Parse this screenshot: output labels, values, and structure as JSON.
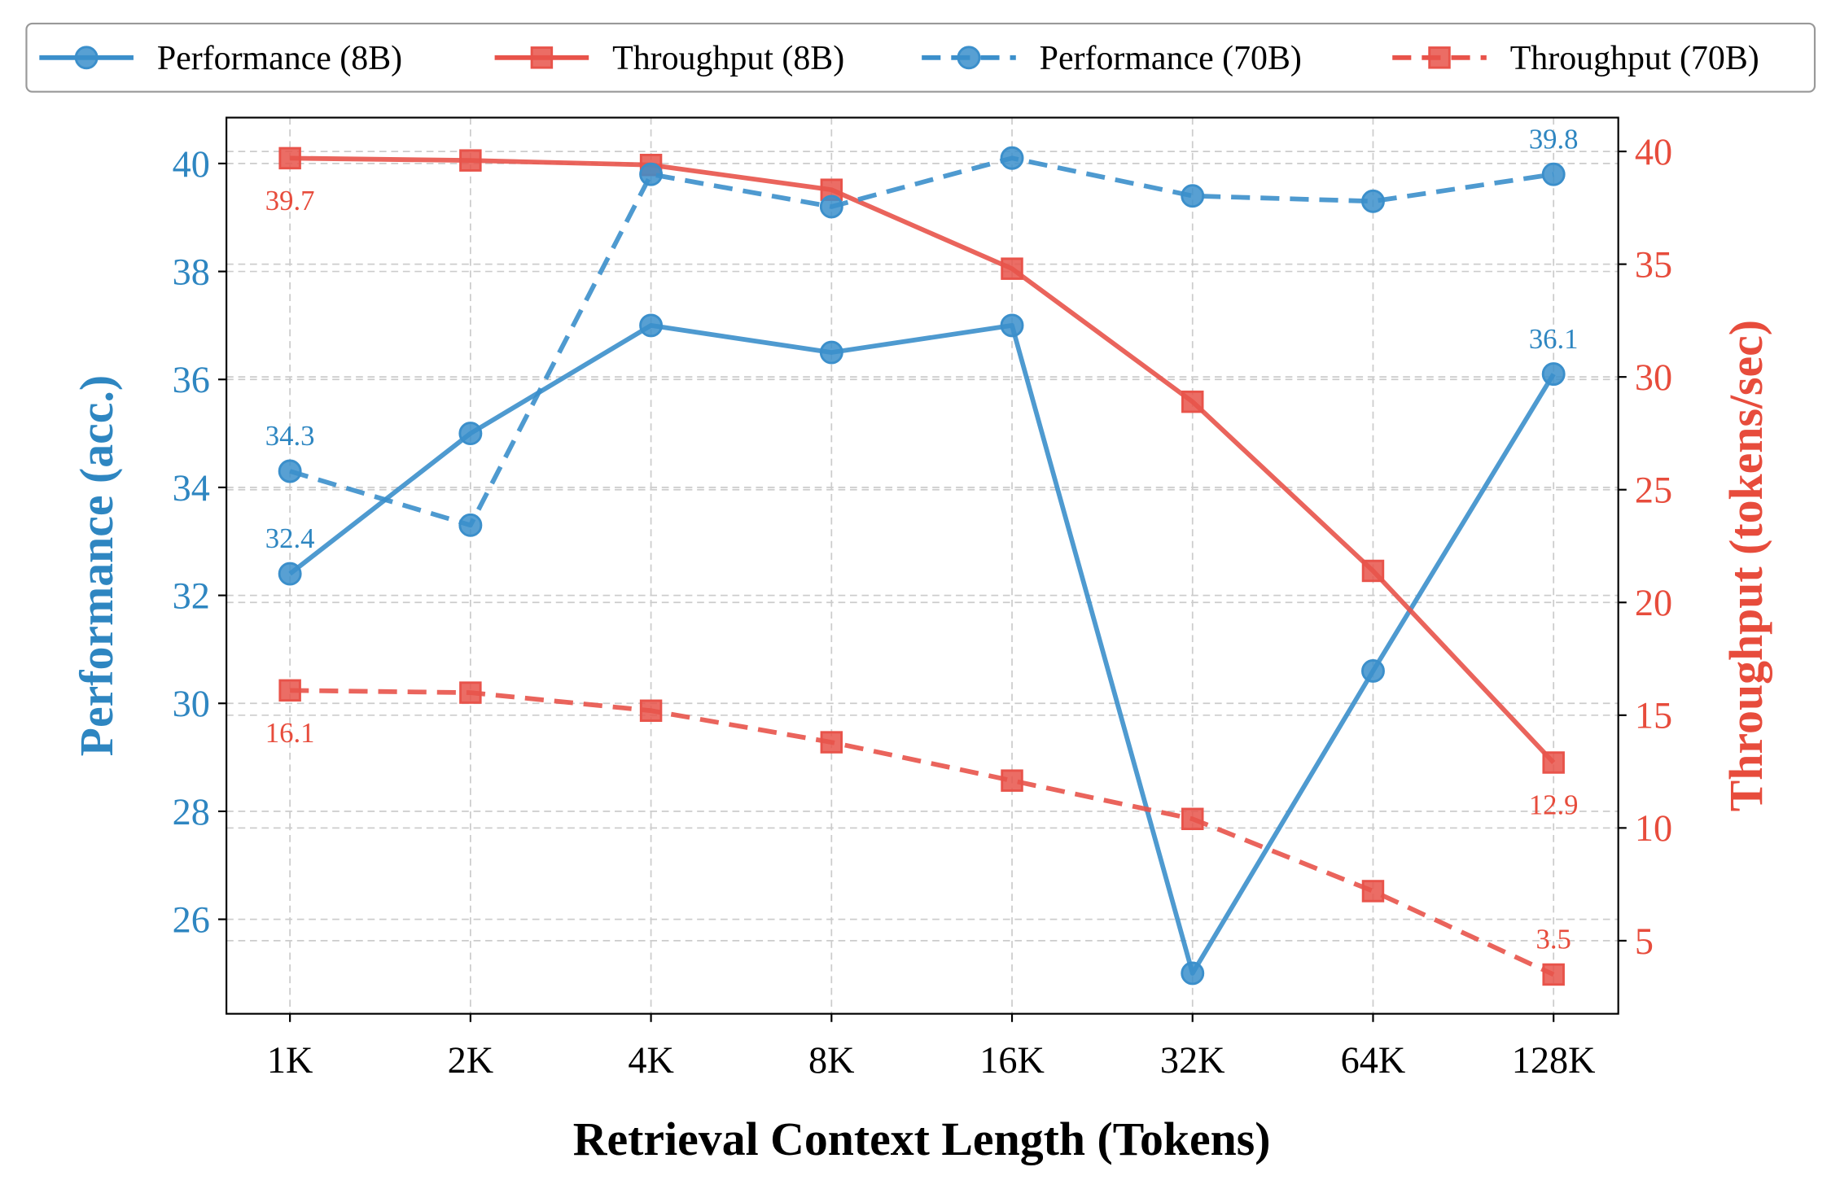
{
  "chart_data": {
    "type": "line",
    "xlabel": "Retrieval Context Length (Tokens)",
    "ylabel_left": "Performance (acc.)",
    "ylabel_right": "Throughput (tokens/sec)",
    "categories": [
      "1K",
      "2K",
      "4K",
      "8K",
      "16K",
      "32K",
      "64K",
      "128K"
    ],
    "ylim_left": [
      24.25,
      40.85
    ],
    "ylim_right": [
      1.76,
      41.5
    ],
    "yticks_left": [
      26,
      28,
      30,
      32,
      34,
      36,
      38,
      40
    ],
    "yticks_right": [
      5,
      10,
      15,
      20,
      25,
      30,
      35,
      40
    ],
    "grid": true,
    "legend_placement": "top (outside, above plot)",
    "colors": {
      "performance": "#3b8fcb",
      "throughput": "#e8534a",
      "left_axis": "#2e86c1",
      "right_axis": "#e74c3c"
    },
    "series": [
      {
        "name": "Performance (8B)",
        "axis": "left",
        "style": "solid",
        "marker": "circle",
        "values": [
          32.4,
          35.0,
          37.0,
          36.5,
          37.0,
          25.0,
          30.6,
          36.1
        ]
      },
      {
        "name": "Throughput (8B)",
        "axis": "right",
        "style": "solid",
        "marker": "square",
        "values": [
          39.7,
          39.6,
          39.4,
          38.3,
          34.8,
          28.9,
          21.4,
          12.9
        ]
      },
      {
        "name": "Performance (70B)",
        "axis": "left",
        "style": "dashed",
        "marker": "circle",
        "values": [
          34.3,
          33.3,
          39.8,
          39.2,
          40.1,
          39.4,
          39.3,
          39.8
        ]
      },
      {
        "name": "Throughput (70B)",
        "axis": "right",
        "style": "dashed",
        "marker": "square",
        "values": [
          16.1,
          16.0,
          15.2,
          13.8,
          12.1,
          10.4,
          7.2,
          3.5
        ]
      }
    ],
    "annotations": [
      {
        "text": "32.4",
        "series": 0,
        "index": 0,
        "pos": "above"
      },
      {
        "text": "36.1",
        "series": 0,
        "index": 7,
        "pos": "above"
      },
      {
        "text": "39.7",
        "series": 1,
        "index": 0,
        "pos": "below"
      },
      {
        "text": "12.9",
        "series": 1,
        "index": 7,
        "pos": "below"
      },
      {
        "text": "34.3",
        "series": 2,
        "index": 0,
        "pos": "above"
      },
      {
        "text": "39.8",
        "series": 2,
        "index": 7,
        "pos": "above"
      },
      {
        "text": "16.1",
        "series": 3,
        "index": 0,
        "pos": "below"
      },
      {
        "text": "3.5",
        "series": 3,
        "index": 7,
        "pos": "above"
      }
    ]
  }
}
